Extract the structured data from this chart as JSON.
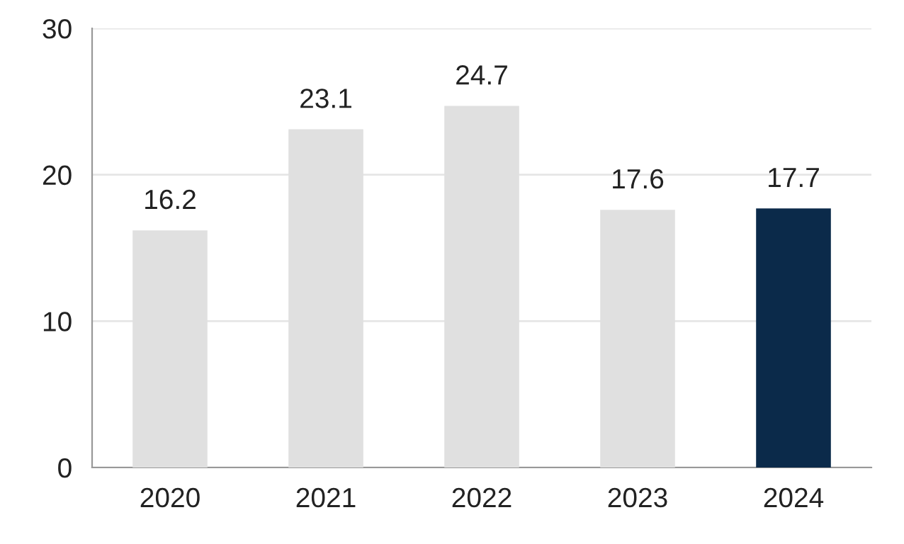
{
  "chart_data": {
    "type": "bar",
    "categories": [
      "2020",
      "2021",
      "2022",
      "2023",
      "2024"
    ],
    "values": [
      16.2,
      23.1,
      24.7,
      17.6,
      17.7
    ],
    "colors": [
      "#e0e0e0",
      "#e0e0e0",
      "#e0e0e0",
      "#e0e0e0",
      "#0b2a4a"
    ],
    "ylim": [
      0,
      30
    ],
    "yticks": [
      0,
      10,
      20,
      30
    ],
    "grid": "y",
    "data_labels": true
  }
}
